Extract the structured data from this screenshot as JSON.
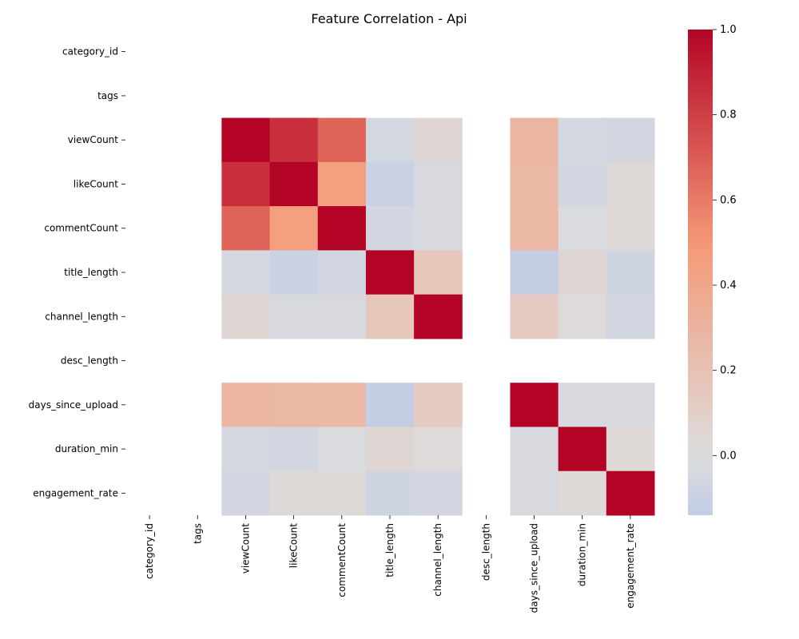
{
  "chart_data": {
    "type": "heatmap",
    "title": "Feature Correlation - Api",
    "colormap": "coolwarm",
    "color_range": [
      -0.14,
      1.0
    ],
    "labels": [
      "category_id",
      "tags",
      "viewCount",
      "likeCount",
      "commentCount",
      "title_length",
      "channel_length",
      "desc_length",
      "days_since_upload",
      "duration_min",
      "engagement_rate"
    ],
    "matrix": [
      [
        null,
        null,
        null,
        null,
        null,
        null,
        null,
        null,
        null,
        null,
        null
      ],
      [
        null,
        null,
        null,
        null,
        null,
        null,
        null,
        null,
        null,
        null,
        null
      ],
      [
        null,
        null,
        1.0,
        0.85,
        0.68,
        -0.05,
        0.05,
        null,
        0.28,
        -0.05,
        -0.06
      ],
      [
        null,
        null,
        0.85,
        1.0,
        0.45,
        -0.1,
        -0.03,
        null,
        0.27,
        -0.06,
        0.03
      ],
      [
        null,
        null,
        0.68,
        0.45,
        1.0,
        -0.06,
        -0.03,
        null,
        0.27,
        -0.02,
        0.03
      ],
      [
        null,
        null,
        -0.05,
        -0.1,
        -0.06,
        1.0,
        0.16,
        null,
        -0.13,
        0.05,
        -0.07
      ],
      [
        null,
        null,
        0.05,
        -0.03,
        -0.03,
        0.16,
        1.0,
        null,
        0.14,
        0.02,
        -0.06
      ],
      [
        null,
        null,
        null,
        null,
        null,
        null,
        null,
        null,
        null,
        null,
        null
      ],
      [
        null,
        null,
        0.28,
        0.27,
        0.27,
        -0.13,
        0.14,
        null,
        1.0,
        -0.03,
        -0.03
      ],
      [
        null,
        null,
        -0.05,
        -0.06,
        -0.02,
        0.05,
        0.02,
        null,
        -0.03,
        1.0,
        0.03
      ],
      [
        null,
        null,
        -0.06,
        0.03,
        0.03,
        -0.07,
        -0.06,
        null,
        -0.03,
        0.03,
        1.0
      ]
    ],
    "colorbar_ticks": [
      "1.0",
      "0.8",
      "0.6",
      "0.4",
      "0.2",
      "0.0"
    ],
    "colorbar_tick_values": [
      1.0,
      0.8,
      0.6,
      0.4,
      0.2,
      0.0
    ]
  }
}
